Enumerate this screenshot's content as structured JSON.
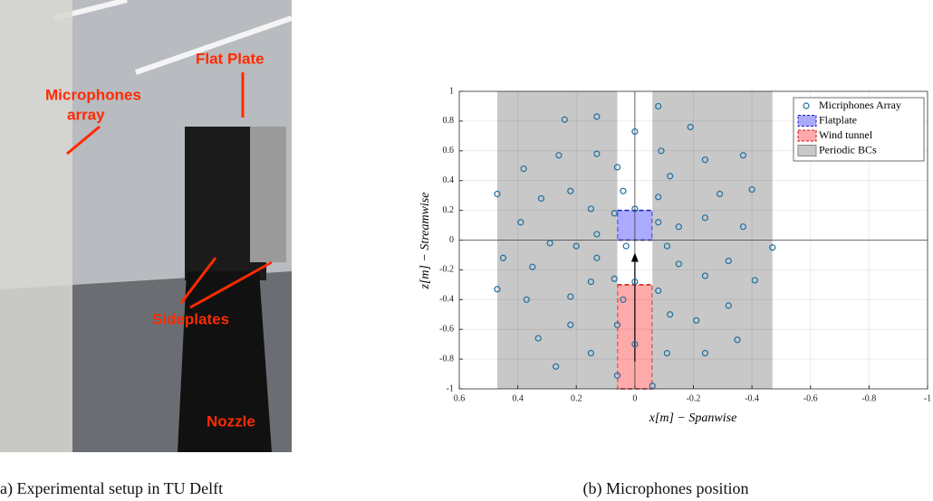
{
  "photo": {
    "labels": [
      "Microphones",
      "array",
      "Flat Plate",
      "Sideplates",
      "Nozzle"
    ],
    "caption": "a) Experimental setup in TU Delft"
  },
  "chart_data": {
    "type": "scatter",
    "caption": "(b) Microphones position",
    "xlabel": "x[m] − Spanwise",
    "ylabel": "z[m] − Streamwise",
    "xlim": [
      0.6,
      -1
    ],
    "ylim": [
      -1,
      1
    ],
    "xticks": [
      0.6,
      0.4,
      0.2,
      0,
      -0.2,
      -0.4,
      -0.6,
      -0.8,
      -1
    ],
    "yticks": [
      -1,
      -0.8,
      -0.6,
      -0.4,
      -0.2,
      0,
      0.2,
      0.4,
      0.6,
      0.8,
      1
    ],
    "grid": true,
    "legend": "upper right",
    "series": [
      {
        "name": "Micriphones Array",
        "color": "#1f6f9f",
        "x": [
          0.47,
          0.45,
          0.47,
          0.39,
          0.38,
          0.37,
          0.35,
          0.33,
          0.32,
          0.29,
          0.27,
          0.26,
          0.24,
          0.22,
          0.22,
          0.22,
          0.2,
          0.13,
          0.13,
          0.13,
          0.13,
          0.15,
          0.15,
          0.15,
          0.07,
          0.06,
          0.04,
          0.07,
          0.06,
          0.06,
          0.04,
          0.03,
          0,
          0,
          0,
          0,
          -0.06,
          -0.08,
          -0.08,
          -0.08,
          -0.08,
          -0.09,
          -0.11,
          -0.11,
          -0.12,
          -0.12,
          -0.15,
          -0.15,
          -0.19,
          -0.21,
          -0.24,
          -0.24,
          -0.24,
          -0.24,
          -0.29,
          -0.32,
          -0.32,
          -0.35,
          -0.37,
          -0.37,
          -0.4,
          -0.41,
          -0.47
        ],
        "values": [
          0.31,
          -0.12,
          -0.33,
          0.12,
          0.48,
          -0.4,
          -0.18,
          -0.66,
          0.28,
          -0.02,
          -0.85,
          0.57,
          0.81,
          0.33,
          -0.38,
          -0.57,
          -0.04,
          0.83,
          0.58,
          0.04,
          -0.12,
          0.21,
          -0.28,
          -0.76,
          0.18,
          0.49,
          0.33,
          -0.26,
          -0.57,
          -0.91,
          -0.4,
          -0.04,
          0.73,
          0.21,
          -0.28,
          -0.7,
          -0.98,
          0.9,
          0.29,
          0.12,
          -0.34,
          0.6,
          -0.04,
          -0.76,
          0.43,
          -0.5,
          0.09,
          -0.16,
          0.76,
          -0.54,
          0.54,
          0.15,
          -0.24,
          -0.76,
          0.31,
          -0.44,
          -0.14,
          -0.67,
          0.57,
          0.09,
          0.34,
          -0.27,
          -0.05
        ]
      }
    ],
    "regions": [
      {
        "name": "Flatplate",
        "color": "#aaaaff",
        "edge": "#1a1acc",
        "rects": [
          [
            0.06,
            -0.06,
            0,
            0.2
          ]
        ]
      },
      {
        "name": "Wind tunnel",
        "color": "#ffaaaa",
        "edge": "#d01010",
        "rects": [
          [
            0.06,
            -0.06,
            -1,
            -0.3
          ]
        ]
      },
      {
        "name": "Periodic BCs",
        "color": "#c8c8c8",
        "edge": "#888888",
        "rects": [
          [
            0.47,
            0.06,
            -1,
            1
          ],
          [
            -0.06,
            -0.47,
            -1,
            1
          ]
        ]
      }
    ]
  }
}
